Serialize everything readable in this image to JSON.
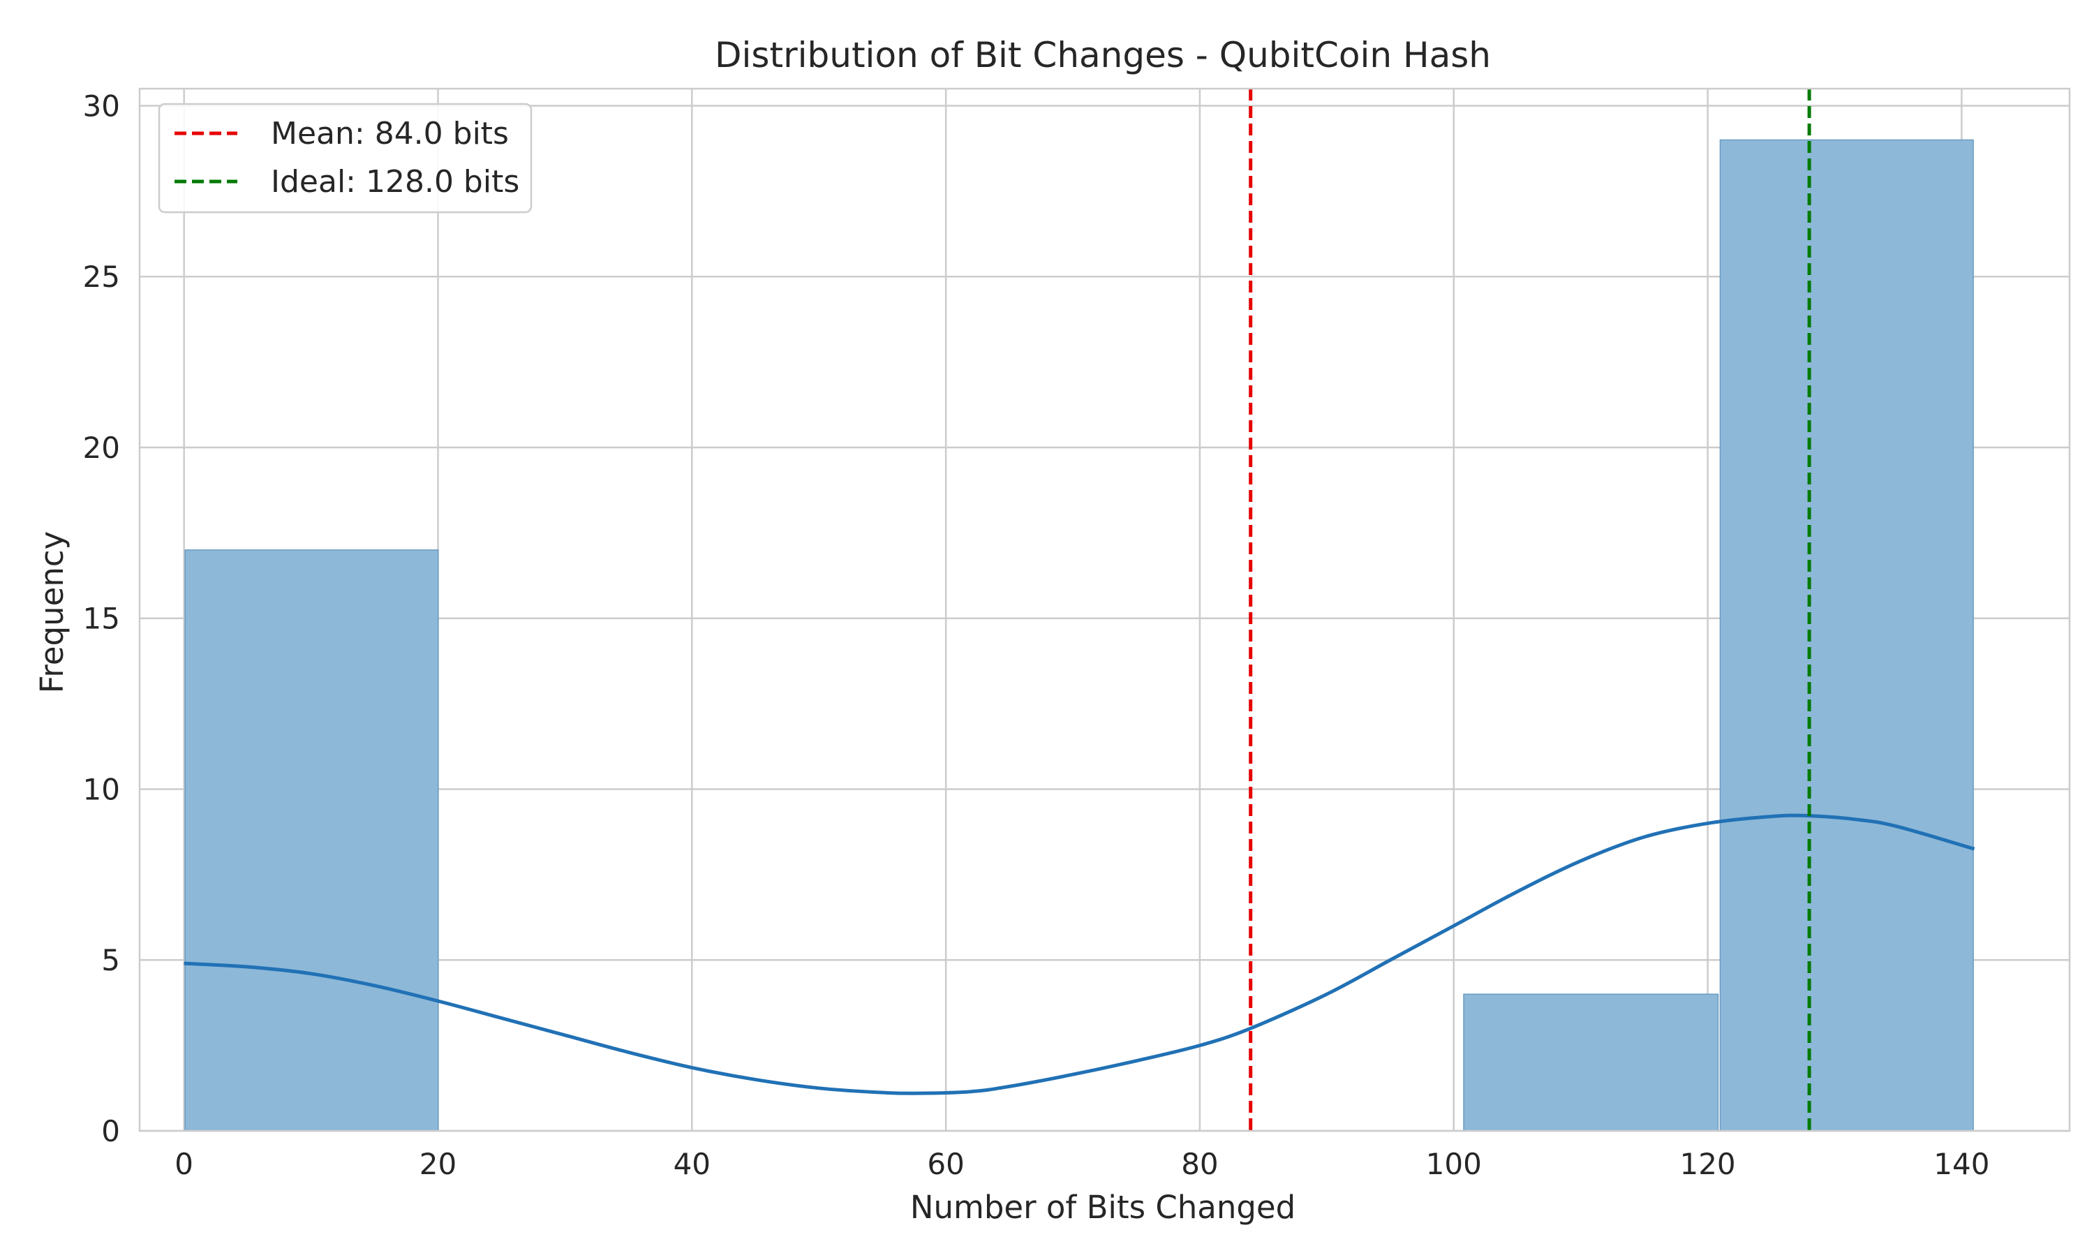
{
  "chart_data": {
    "type": "bar",
    "title": "Distribution of Bit Changes - QubitCoin Hash",
    "xlabel": "Number of Bits Changed",
    "ylabel": "Frequency",
    "xlim": [
      -3.5,
      148.5
    ],
    "ylim": [
      0,
      30.5
    ],
    "xticks": [
      0,
      20,
      40,
      60,
      80,
      100,
      120,
      140
    ],
    "yticks": [
      0,
      5,
      10,
      15,
      20,
      25,
      30
    ],
    "grid": true,
    "legend_position": "top-left",
    "histogram_bins": [
      {
        "x_start": 0.0,
        "x_end": 20.1,
        "count": 17
      },
      {
        "x_start": 20.1,
        "x_end": 40.3,
        "count": 0
      },
      {
        "x_start": 40.3,
        "x_end": 60.4,
        "count": 0
      },
      {
        "x_start": 60.4,
        "x_end": 80.6,
        "count": 0
      },
      {
        "x_start": 80.6,
        "x_end": 100.7,
        "count": 0
      },
      {
        "x_start": 100.7,
        "x_end": 120.9,
        "count": 4
      },
      {
        "x_start": 120.9,
        "x_end": 141.0,
        "count": 29
      }
    ],
    "kde_curve": {
      "x": [
        0,
        5,
        10,
        15,
        20,
        25,
        30,
        35,
        40,
        45,
        50,
        55,
        58,
        62,
        65,
        70,
        75,
        80,
        84,
        90,
        95,
        100,
        105,
        110,
        115,
        120,
        125,
        128,
        132,
        135,
        141
      ],
      "y": [
        4.9,
        4.8,
        4.6,
        4.25,
        3.8,
        3.3,
        2.8,
        2.3,
        1.85,
        1.5,
        1.25,
        1.12,
        1.1,
        1.15,
        1.3,
        1.65,
        2.05,
        2.5,
        3.0,
        4.0,
        5.0,
        6.0,
        7.0,
        7.9,
        8.6,
        9.0,
        9.2,
        9.22,
        9.1,
        8.9,
        8.25
      ]
    },
    "reference_lines": [
      {
        "label": "Mean: 84.0 bits",
        "x": 84.0,
        "color": "#e60000",
        "style": "dashed"
      },
      {
        "label": "Ideal: 128.0 bits",
        "x": 128.0,
        "color": "#007a00",
        "style": "dashed"
      }
    ],
    "colors": {
      "bars": "#8db8d8",
      "bar_edge": "#6a9cc2",
      "kde_line": "#2171b5",
      "grid": "#cccccc"
    }
  }
}
